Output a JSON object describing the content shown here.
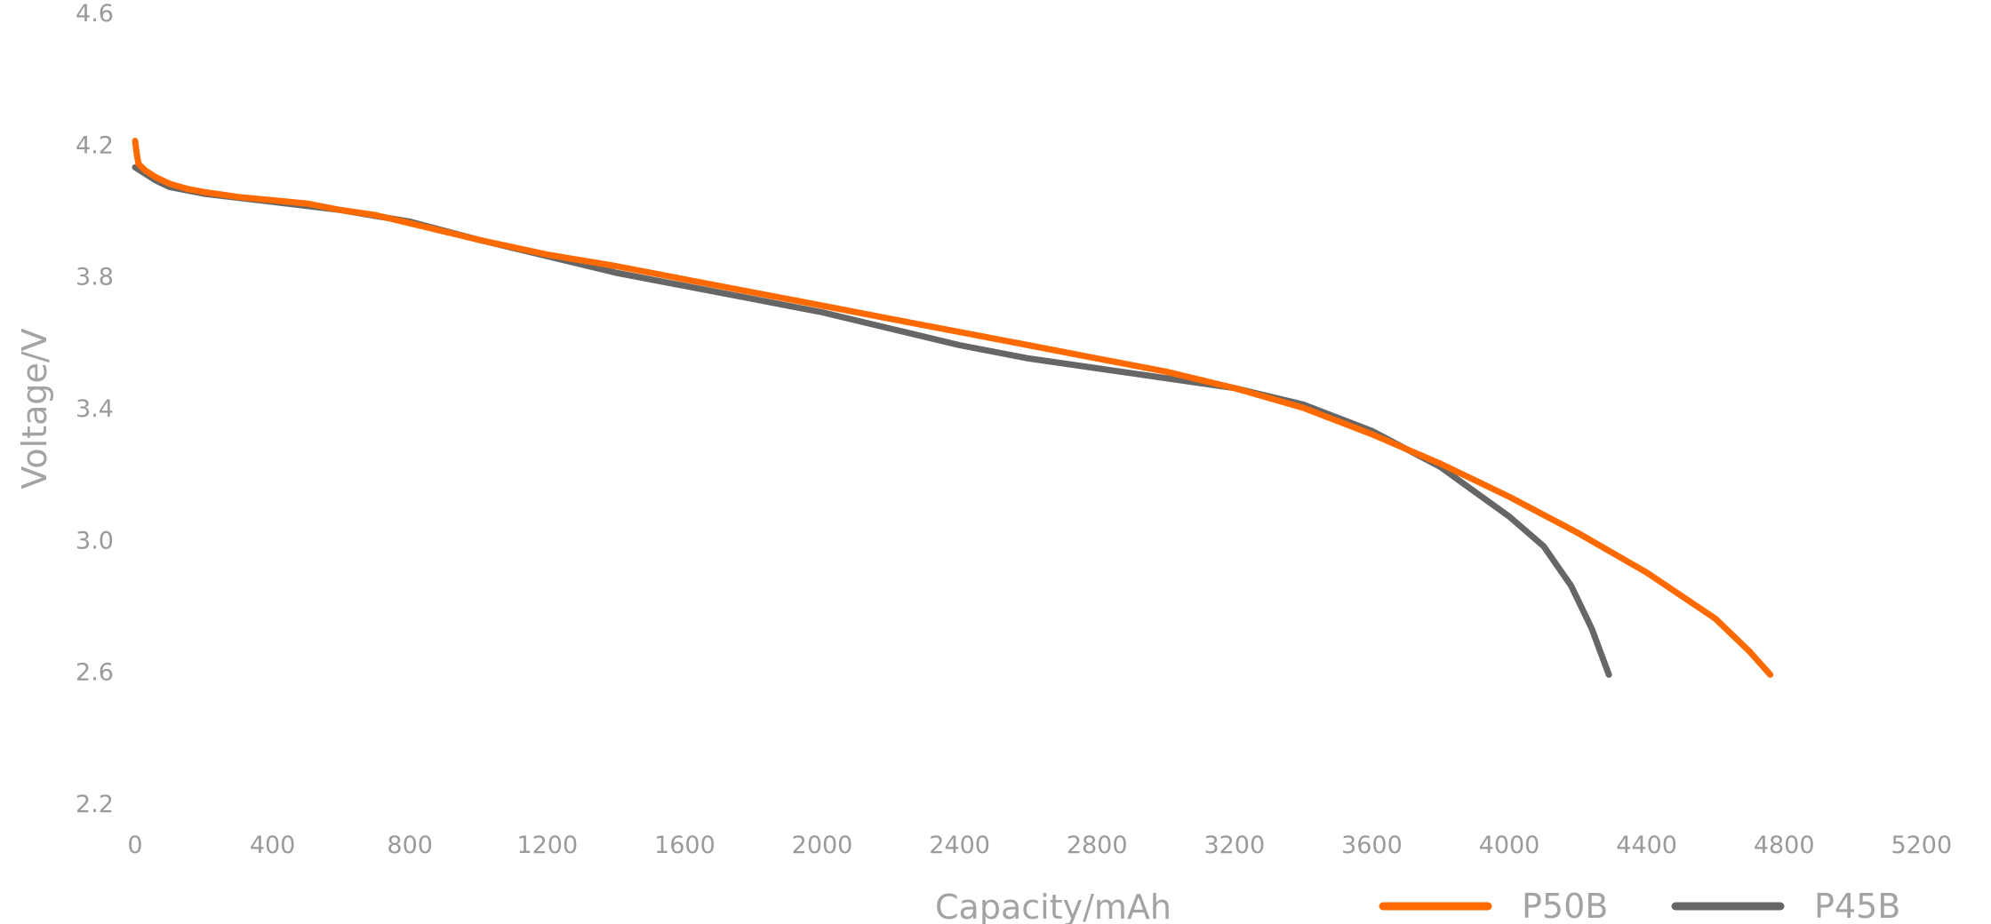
{
  "chart_data": {
    "type": "line",
    "title": "",
    "xlabel": "Capacity/mAh",
    "ylabel": "Voltage/V",
    "xlim": [
      0,
      5200
    ],
    "ylim": [
      2.2,
      4.6
    ],
    "x_ticks": [
      "0",
      "400",
      "800",
      "1200",
      "1600",
      "2000",
      "2400",
      "2800",
      "3200",
      "3600",
      "4000",
      "4400",
      "4800",
      "5200"
    ],
    "y_ticks": [
      "4.6",
      "4.2",
      "3.8",
      "3.4",
      "3.0",
      "2.6",
      "2.2"
    ],
    "grid": false,
    "legend_position": "bottom-right",
    "series": [
      {
        "name": "P50B",
        "color": "#ff6a00",
        "points": [
          [
            0,
            4.21
          ],
          [
            5,
            4.17
          ],
          [
            10,
            4.14
          ],
          [
            30,
            4.12
          ],
          [
            60,
            4.1
          ],
          [
            100,
            4.08
          ],
          [
            150,
            4.065
          ],
          [
            200,
            4.055
          ],
          [
            300,
            4.04
          ],
          [
            400,
            4.03
          ],
          [
            500,
            4.02
          ],
          [
            600,
            4.0
          ],
          [
            700,
            3.985
          ],
          [
            800,
            3.96
          ],
          [
            1000,
            3.91
          ],
          [
            1200,
            3.865
          ],
          [
            1400,
            3.83
          ],
          [
            1600,
            3.79
          ],
          [
            1800,
            3.75
          ],
          [
            2000,
            3.71
          ],
          [
            2200,
            3.67
          ],
          [
            2400,
            3.63
          ],
          [
            2600,
            3.59
          ],
          [
            2800,
            3.55
          ],
          [
            3000,
            3.51
          ],
          [
            3200,
            3.46
          ],
          [
            3400,
            3.4
          ],
          [
            3600,
            3.32
          ],
          [
            3800,
            3.23
          ],
          [
            4000,
            3.13
          ],
          [
            4200,
            3.02
          ],
          [
            4400,
            2.9
          ],
          [
            4600,
            2.76
          ],
          [
            4700,
            2.66
          ],
          [
            4760,
            2.59
          ]
        ]
      },
      {
        "name": "P45B",
        "color": "#666666",
        "points": [
          [
            0,
            4.13
          ],
          [
            30,
            4.11
          ],
          [
            60,
            4.09
          ],
          [
            100,
            4.07
          ],
          [
            200,
            4.05
          ],
          [
            400,
            4.025
          ],
          [
            600,
            4.0
          ],
          [
            800,
            3.965
          ],
          [
            1000,
            3.91
          ],
          [
            1200,
            3.86
          ],
          [
            1400,
            3.81
          ],
          [
            1600,
            3.77
          ],
          [
            1800,
            3.73
          ],
          [
            2000,
            3.69
          ],
          [
            2200,
            3.64
          ],
          [
            2400,
            3.59
          ],
          [
            2600,
            3.55
          ],
          [
            2800,
            3.52
          ],
          [
            3000,
            3.49
          ],
          [
            3200,
            3.46
          ],
          [
            3400,
            3.41
          ],
          [
            3600,
            3.33
          ],
          [
            3800,
            3.22
          ],
          [
            4000,
            3.07
          ],
          [
            4100,
            2.98
          ],
          [
            4180,
            2.86
          ],
          [
            4240,
            2.73
          ],
          [
            4290,
            2.59
          ]
        ]
      }
    ]
  }
}
